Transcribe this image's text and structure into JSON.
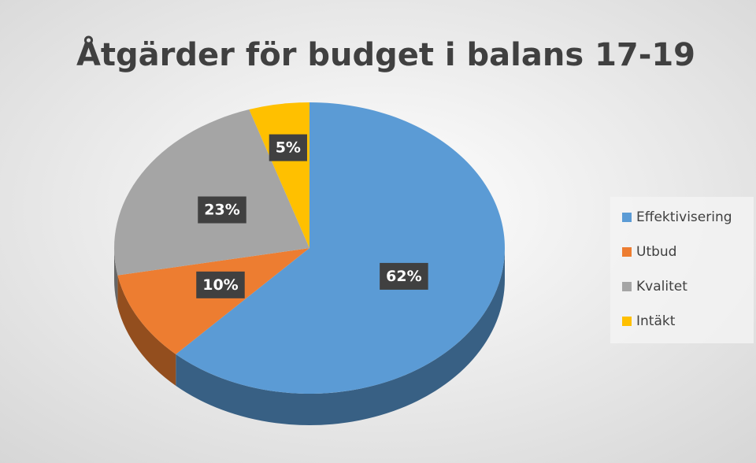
{
  "chart_data": {
    "type": "pie3d",
    "title": "Åtgärder för budget i balans 17-19",
    "categories": [
      "Effektivisering",
      "Utbud",
      "Kvalitet",
      "Intäkt"
    ],
    "values": [
      62,
      10,
      23,
      5
    ],
    "value_labels": [
      "62%",
      "10%",
      "23%",
      "5%"
    ],
    "colors": [
      "#5b9bd5",
      "#ed7d31",
      "#a5a5a5",
      "#ffc000"
    ],
    "legend": "right"
  }
}
